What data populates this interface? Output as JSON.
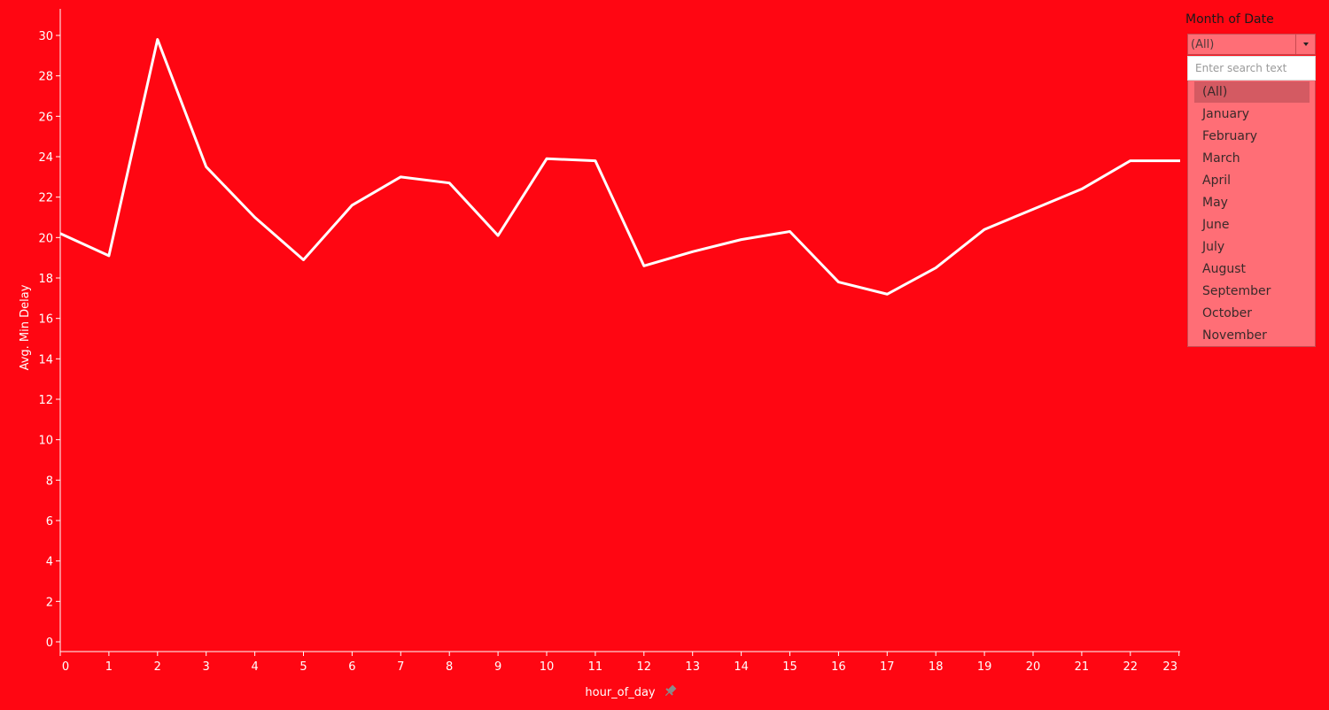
{
  "chart_data": {
    "type": "line",
    "x": [
      0,
      1,
      2,
      3,
      4,
      5,
      6,
      7,
      8,
      9,
      10,
      11,
      12,
      13,
      14,
      15,
      16,
      17,
      18,
      19,
      20,
      21,
      22,
      23
    ],
    "series": [
      {
        "values": [
          20.2,
          19.1,
          29.8,
          23.5,
          21.0,
          18.9,
          21.6,
          23.0,
          22.7,
          20.1,
          23.9,
          23.8,
          18.6,
          19.3,
          19.9,
          20.3,
          17.8,
          17.2,
          18.5,
          20.4,
          21.4,
          22.4,
          23.8,
          23.8
        ]
      }
    ],
    "xlabel": "hour_of_day",
    "ylabel": "Avg. Min Delay",
    "ylim": [
      0,
      31
    ],
    "y_ticks": [
      0,
      2,
      4,
      6,
      8,
      10,
      12,
      14,
      16,
      18,
      20,
      22,
      24,
      26,
      28,
      30
    ],
    "x_ticks": [
      "0",
      "1",
      "2",
      "3",
      "4",
      "5",
      "6",
      "7",
      "8",
      "9",
      "10",
      "11",
      "12",
      "13",
      "14",
      "15",
      "16",
      "17",
      "18",
      "19",
      "20",
      "21",
      "22",
      "23"
    ],
    "line_color": "#ffffff",
    "background": "#ff0612",
    "grid": false
  },
  "filter": {
    "title": "Month of Date",
    "selected_value": "(All)",
    "search_placeholder": "Enter search text",
    "options": [
      "(All)",
      "January",
      "February",
      "March",
      "April",
      "May",
      "June",
      "July",
      "August",
      "September",
      "October",
      "November"
    ],
    "selected_index": 0
  },
  "pin_icon": "pin-icon"
}
